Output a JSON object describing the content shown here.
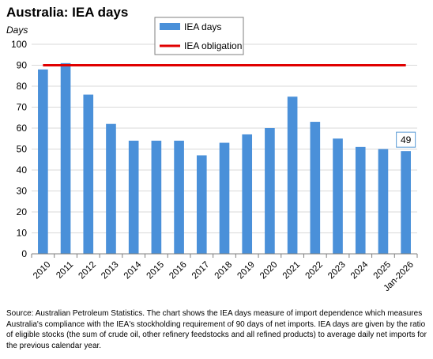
{
  "title": "Australia: IEA days",
  "unit_label": "Days",
  "source_note": "Source: Australian Petroleum Statistics. The chart shows the IEA days measure of import dependence which measures Australia's compliance with the IEA's stockholding requirement of 90 days of net imports. IEA days are given by the ratio of eligible stocks (the sum of crude oil, other refinery feedstocks and all refined products) to average daily net imports for the previous calendar year.",
  "colors": {
    "bar": "#4a90d9",
    "line": "#e00000",
    "grid": "#d9d9d9",
    "axis": "#7f7f7f",
    "label_border": "#5b9bd5"
  },
  "chart_data": {
    "type": "bar",
    "categories": [
      "2010",
      "2011",
      "2012",
      "2013",
      "2014",
      "2015",
      "2016",
      "2017",
      "2018",
      "2019",
      "2020",
      "2021",
      "2022",
      "2023",
      "2024",
      "2025",
      "Jan-2026"
    ],
    "series": [
      {
        "name": "IEA days",
        "type": "bar",
        "values": [
          88,
          91,
          76,
          62,
          54,
          54,
          54,
          47,
          53,
          57,
          60,
          75,
          63,
          55,
          51,
          50,
          49
        ]
      },
      {
        "name": "IEA obligation",
        "type": "line",
        "values": [
          90,
          90,
          90,
          90,
          90,
          90,
          90,
          90,
          90,
          90,
          90,
          90,
          90,
          90,
          90,
          90,
          90
        ]
      }
    ],
    "ylim": [
      0,
      100
    ],
    "yticks": [
      0,
      10,
      20,
      30,
      40,
      50,
      60,
      70,
      80,
      90,
      100
    ],
    "grid": true,
    "legend": "top-center",
    "annotations": [
      {
        "category": "Jan-2026",
        "text": "49"
      }
    ]
  }
}
